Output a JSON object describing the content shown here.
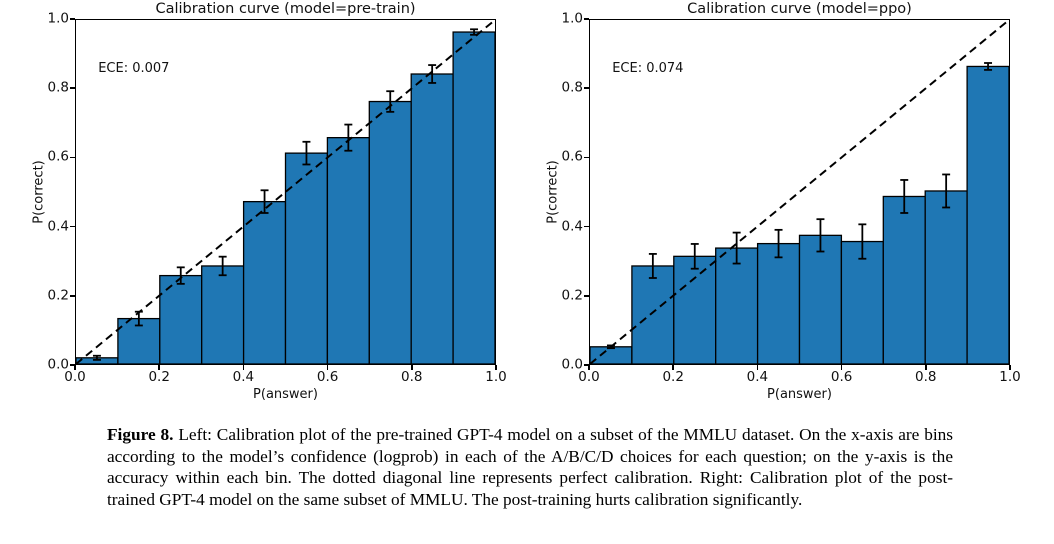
{
  "figure": {
    "caption_label": "Figure 8.",
    "caption_text": "Left: Calibration plot of the pre-trained GPT-4 model on a subset of the MMLU dataset. On the x-axis are bins according to the model’s confidence (logprob) in each of the A/B/C/D choices for each question; on the y-axis is the accuracy within each bin. The dotted diagonal line represents perfect calibration. Right: Calibration plot of the post-trained GPT-4 model on the same subset of MMLU. The post-training hurts calibration significantly."
  },
  "colors": {
    "bar_fill": "#1f77b4",
    "bar_edge": "#000000",
    "diagonal": "#000000",
    "error_bar": "#000000"
  },
  "chart_data": [
    {
      "type": "bar",
      "title": "Calibration curve (model=pre-train)",
      "annotation": "ECE: 0.007",
      "xlabel": "P(answer)",
      "ylabel": "P(correct)",
      "xlim": [
        0.0,
        1.0
      ],
      "ylim": [
        0.0,
        1.0
      ],
      "xticks": [
        "0.0",
        "0.2",
        "0.4",
        "0.6",
        "0.8",
        "1.0"
      ],
      "yticks": [
        "0.0",
        "0.2",
        "0.4",
        "0.6",
        "0.8",
        "1.0"
      ],
      "grid": false,
      "legend": false,
      "diagonal": true,
      "bin_width": 0.1,
      "bin_centers": [
        0.05,
        0.15,
        0.25,
        0.35,
        0.45,
        0.55,
        0.65,
        0.75,
        0.85,
        0.95
      ],
      "values": [
        0.018,
        0.132,
        0.257,
        0.285,
        0.472,
        0.613,
        0.658,
        0.763,
        0.843,
        0.965
      ],
      "errors": [
        0.006,
        0.02,
        0.024,
        0.027,
        0.033,
        0.033,
        0.038,
        0.03,
        0.026,
        0.008
      ]
    },
    {
      "type": "bar",
      "title": "Calibration curve (model=ppo)",
      "annotation": "ECE: 0.074",
      "xlabel": "P(answer)",
      "ylabel": "P(correct)",
      "xlim": [
        0.0,
        1.0
      ],
      "ylim": [
        0.0,
        1.0
      ],
      "xticks": [
        "0.0",
        "0.2",
        "0.4",
        "0.6",
        "0.8",
        "1.0"
      ],
      "yticks": [
        "0.0",
        "0.2",
        "0.4",
        "0.6",
        "0.8",
        "1.0"
      ],
      "grid": false,
      "legend": false,
      "diagonal": true,
      "bin_width": 0.1,
      "bin_centers": [
        0.05,
        0.15,
        0.25,
        0.35,
        0.45,
        0.55,
        0.65,
        0.75,
        0.85,
        0.95
      ],
      "values": [
        0.05,
        0.285,
        0.313,
        0.337,
        0.35,
        0.374,
        0.356,
        0.487,
        0.503,
        0.865
      ],
      "errors": [
        0.004,
        0.035,
        0.036,
        0.045,
        0.04,
        0.047,
        0.05,
        0.048,
        0.048,
        0.01
      ]
    }
  ]
}
